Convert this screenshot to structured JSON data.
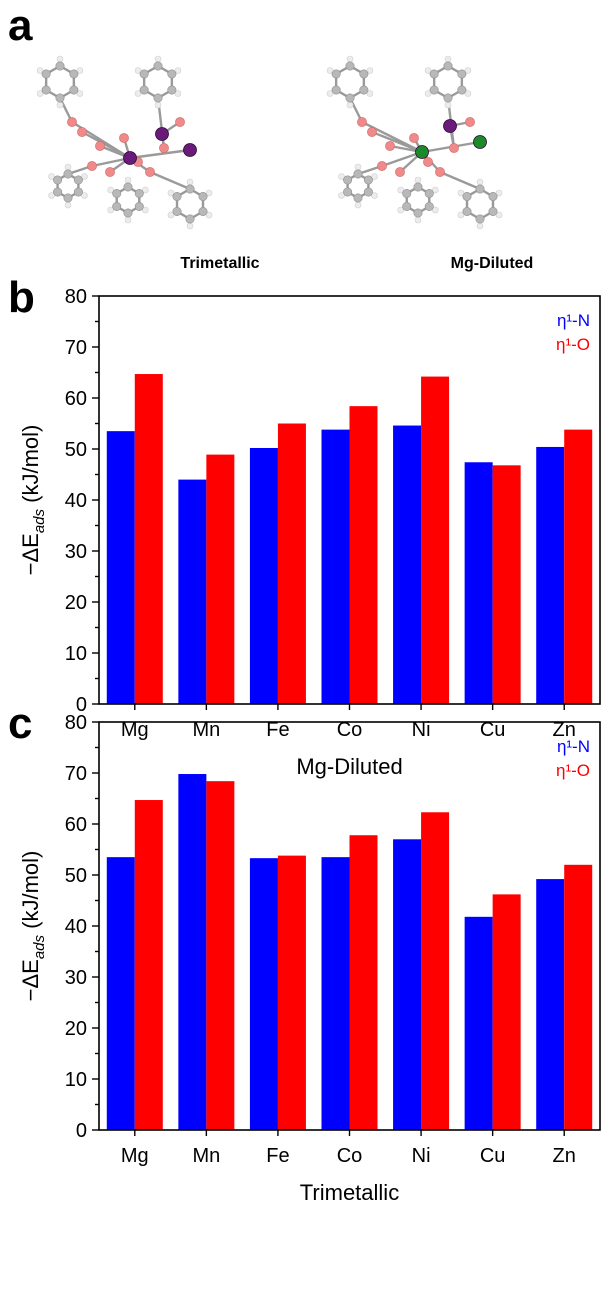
{
  "panels": {
    "a": "a",
    "b": "b",
    "c": "c"
  },
  "structures": {
    "left_label": "Trimetallic",
    "right_label": "Mg-Diluted",
    "atom_colors": {
      "carbon": "#b8b8b8",
      "hydrogen": "#ececec",
      "oxygen": "#f08a8a",
      "metal_purple": "#6a1a7a",
      "metal_green": "#1c8a2a"
    }
  },
  "colors": {
    "series_n": "#0000ff",
    "series_o": "#ff0000"
  },
  "chart_data": [
    {
      "type": "bar",
      "panel": "b",
      "categories": [
        "Mg",
        "Mn",
        "Fe",
        "Co",
        "Ni",
        "Cu",
        "Zn"
      ],
      "series": [
        {
          "name": "η¹-N",
          "color": "#0000ff",
          "values": [
            53.5,
            44.0,
            50.2,
            53.8,
            54.6,
            47.4,
            50.4
          ]
        },
        {
          "name": "η¹-O",
          "color": "#ff0000",
          "values": [
            64.7,
            48.9,
            55.0,
            58.4,
            64.2,
            46.8,
            53.8
          ]
        }
      ],
      "xlabel": "Mg-Diluted",
      "ylabel": "−ΔE",
      "ylabel_sub": "ads",
      "ylabel_unit": " (kJ/mol)",
      "ylim": [
        0,
        80
      ],
      "yticks": [
        0,
        10,
        20,
        30,
        40,
        50,
        60,
        70,
        80
      ],
      "legend_position": "top-right"
    },
    {
      "type": "bar",
      "panel": "c",
      "categories": [
        "Mg",
        "Mn",
        "Fe",
        "Co",
        "Ni",
        "Cu",
        "Zn"
      ],
      "series": [
        {
          "name": "η¹-N",
          "color": "#0000ff",
          "values": [
            53.5,
            69.8,
            53.3,
            53.5,
            57.0,
            41.8,
            49.2
          ]
        },
        {
          "name": "η¹-O",
          "color": "#ff0000",
          "values": [
            64.7,
            68.4,
            53.8,
            57.8,
            62.3,
            46.2,
            52.0
          ]
        }
      ],
      "xlabel": "Trimetallic",
      "ylabel": "−ΔE",
      "ylabel_sub": "ads",
      "ylabel_unit": " (kJ/mol)",
      "ylim": [
        0,
        80
      ],
      "yticks": [
        0,
        10,
        20,
        30,
        40,
        50,
        60,
        70,
        80
      ],
      "legend_position": "top-right"
    }
  ]
}
